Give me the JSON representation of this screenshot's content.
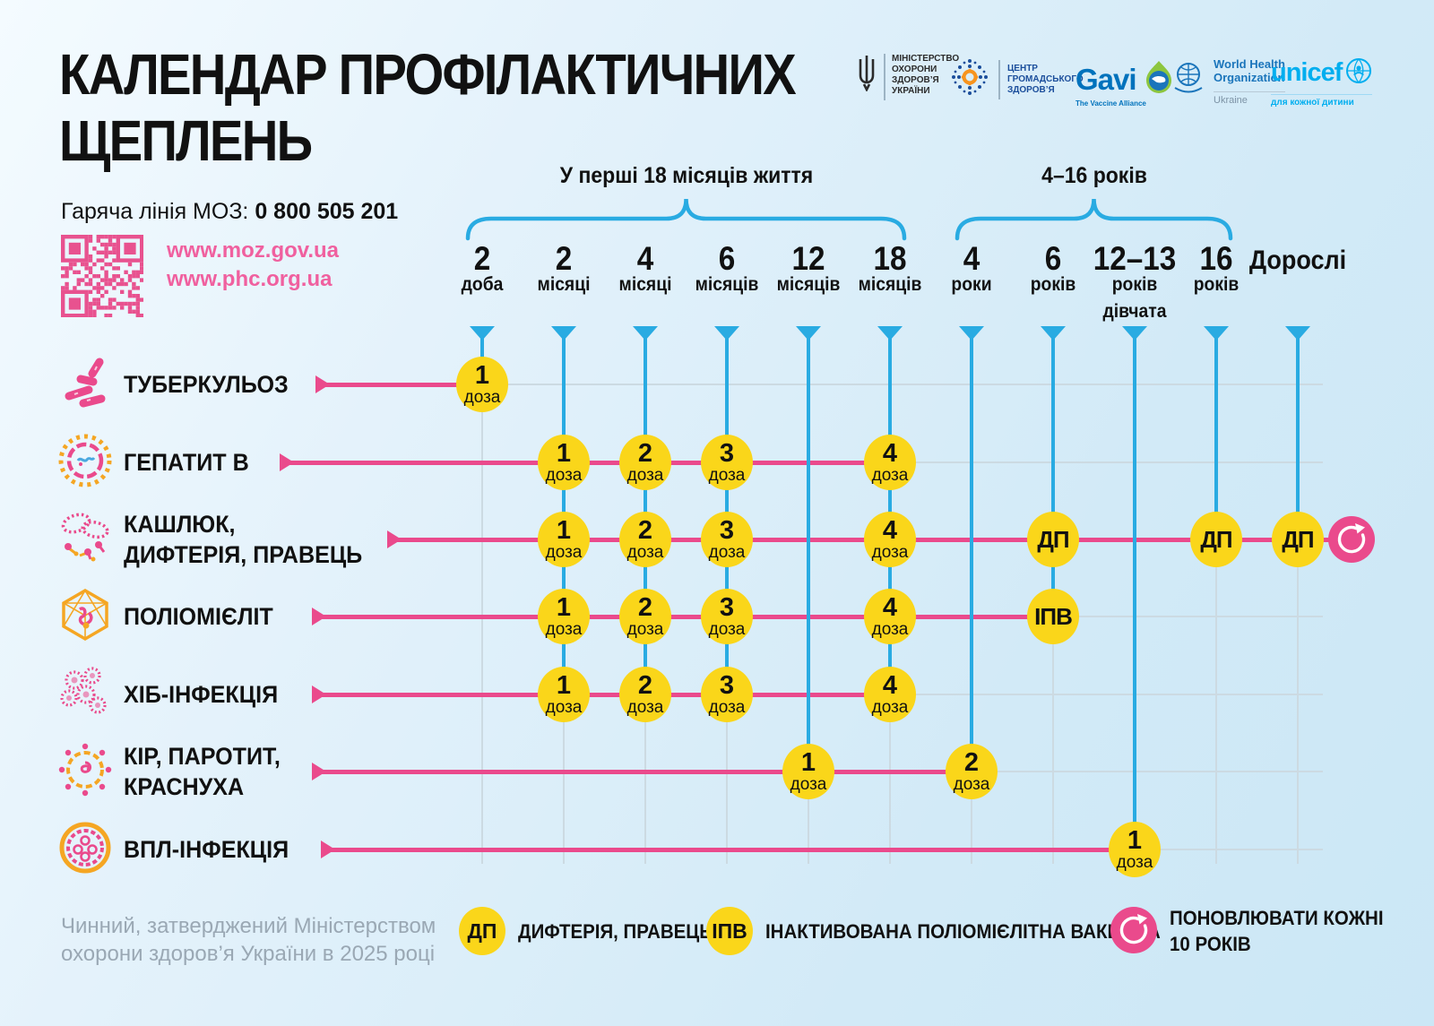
{
  "poster": {
    "title_line1": "КАЛЕНДАР ПРОФІЛАКТИЧНИХ",
    "title_line2": "ЩЕПЛЕНЬ",
    "hotline_label": "Гаряча лінія МОЗ:",
    "hotline_number": "0 800 505 201",
    "url1": "www.moz.gov.ua",
    "url2": "www.phc.org.ua",
    "footer_line1": "Чинний, затверджений Міністерством",
    "footer_line2": "охорони здоров’я України в 2025 році"
  },
  "logos": {
    "moz_lines": [
      "МІНІСТЕРСТВО",
      "ОХОРОНИ",
      "ЗДОРОВ’Я",
      "УКРАЇНИ"
    ],
    "phc_lines": [
      "ЦЕНТР",
      "ГРОМАДСЬКОГО",
      "ЗДОРОВ’Я"
    ],
    "gavi_name": "Gavi",
    "gavi_sub": "The Vaccine Alliance",
    "who_line1": "World Health",
    "who_line2": "Organization",
    "who_sub": "Ukraine",
    "unicef_name": "unicef",
    "unicef_sub": "для кожної дитини"
  },
  "chart_data": {
    "type": "timeline-matrix",
    "age_groups": [
      {
        "label": "У перші 18 місяців життя",
        "from_col": 0,
        "to_col": 5
      },
      {
        "label": "4–16 років",
        "from_col": 6,
        "to_col": 9
      }
    ],
    "columns": [
      {
        "num": "2",
        "unit": "доба"
      },
      {
        "num": "2",
        "unit": "місяці"
      },
      {
        "num": "4",
        "unit": "місяці"
      },
      {
        "num": "6",
        "unit": "місяців"
      },
      {
        "num": "12",
        "unit": "місяців"
      },
      {
        "num": "18",
        "unit": "місяців"
      },
      {
        "num": "4",
        "unit": "роки"
      },
      {
        "num": "6",
        "unit": "років"
      },
      {
        "num": "12–13",
        "unit": "років",
        "extra": "дівчата"
      },
      {
        "num": "16",
        "unit": "років"
      },
      {
        "num": "Дорослі",
        "unit": "",
        "adult": true
      }
    ],
    "rows": [
      {
        "id": "tuberculosis",
        "label_lines": [
          "ТУБЕРКУЛЬОЗ"
        ],
        "icon": "tuberculosis-icon",
        "doses": [
          {
            "col": 0,
            "label": "1",
            "sub": "доза"
          }
        ]
      },
      {
        "id": "hepatitis-b",
        "label_lines": [
          "ГЕПАТИТ В"
        ],
        "icon": "hepatitis-b-icon",
        "doses": [
          {
            "col": 1,
            "label": "1",
            "sub": "доза"
          },
          {
            "col": 2,
            "label": "2",
            "sub": "доза"
          },
          {
            "col": 3,
            "label": "3",
            "sub": "доза"
          },
          {
            "col": 5,
            "label": "4",
            "sub": "доза"
          }
        ]
      },
      {
        "id": "pertussis-diphtheria-tetanus",
        "label_lines": [
          "КАШЛЮК,",
          "ДИФТЕРІЯ, ПРАВЕЦЬ"
        ],
        "icon": "pertussis-diphtheria-tetanus-icon",
        "doses": [
          {
            "col": 1,
            "label": "1",
            "sub": "доза"
          },
          {
            "col": 2,
            "label": "2",
            "sub": "доза"
          },
          {
            "col": 3,
            "label": "3",
            "sub": "доза"
          },
          {
            "col": 5,
            "label": "4",
            "sub": "доза"
          },
          {
            "col": 7,
            "label": "ДП"
          },
          {
            "col": 9,
            "label": "ДП"
          },
          {
            "col": 10,
            "label": "ДП"
          }
        ],
        "repeat_marker": true
      },
      {
        "id": "polio",
        "label_lines": [
          "ПОЛІОМІЄЛІТ"
        ],
        "icon": "polio-icon",
        "doses": [
          {
            "col": 1,
            "label": "1",
            "sub": "доза"
          },
          {
            "col": 2,
            "label": "2",
            "sub": "доза"
          },
          {
            "col": 3,
            "label": "3",
            "sub": "доза"
          },
          {
            "col": 5,
            "label": "4",
            "sub": "доза"
          },
          {
            "col": 7,
            "label": "ІПВ"
          }
        ]
      },
      {
        "id": "hib",
        "label_lines": [
          "ХІБ-ІНФЕКЦІЯ"
        ],
        "icon": "hib-icon",
        "doses": [
          {
            "col": 1,
            "label": "1",
            "sub": "доза"
          },
          {
            "col": 2,
            "label": "2",
            "sub": "доза"
          },
          {
            "col": 3,
            "label": "3",
            "sub": "доза"
          },
          {
            "col": 5,
            "label": "4",
            "sub": "доза"
          }
        ]
      },
      {
        "id": "measles-mumps-rubella",
        "label_lines": [
          "КІР, ПАРОТИТ,",
          "КРАСНУХА"
        ],
        "icon": "measles-mumps-rubella-icon",
        "doses": [
          {
            "col": 4,
            "label": "1",
            "sub": "доза"
          },
          {
            "col": 6,
            "label": "2",
            "sub": "доза"
          }
        ]
      },
      {
        "id": "hpv",
        "label_lines": [
          "ВПЛ-ІНФЕКЦІЯ"
        ],
        "icon": "hpv-icon",
        "doses": [
          {
            "col": 8,
            "label": "1",
            "sub": "доза"
          }
        ]
      }
    ],
    "legend": [
      {
        "badge": "ДП",
        "style": "yellow",
        "lines": [
          "ДИФТЕРІЯ, ПРАВЕЦЬ"
        ]
      },
      {
        "badge": "ІПВ",
        "style": "yellow",
        "lines": [
          "ІНАКТИВОВАНА ПОЛІОМІЄЛІТНА ВАКЦИНА"
        ]
      },
      {
        "badge": "",
        "style": "pink",
        "icon": "refresh-icon",
        "lines": [
          "ПОНОВЛЮВАТИ КОЖНІ",
          "10 РОКІВ"
        ]
      }
    ],
    "colors": {
      "pink": "#EA4A8C",
      "yellow": "#FAD61A",
      "blue": "#29ABE2",
      "grid": "#CCDAE2"
    }
  }
}
